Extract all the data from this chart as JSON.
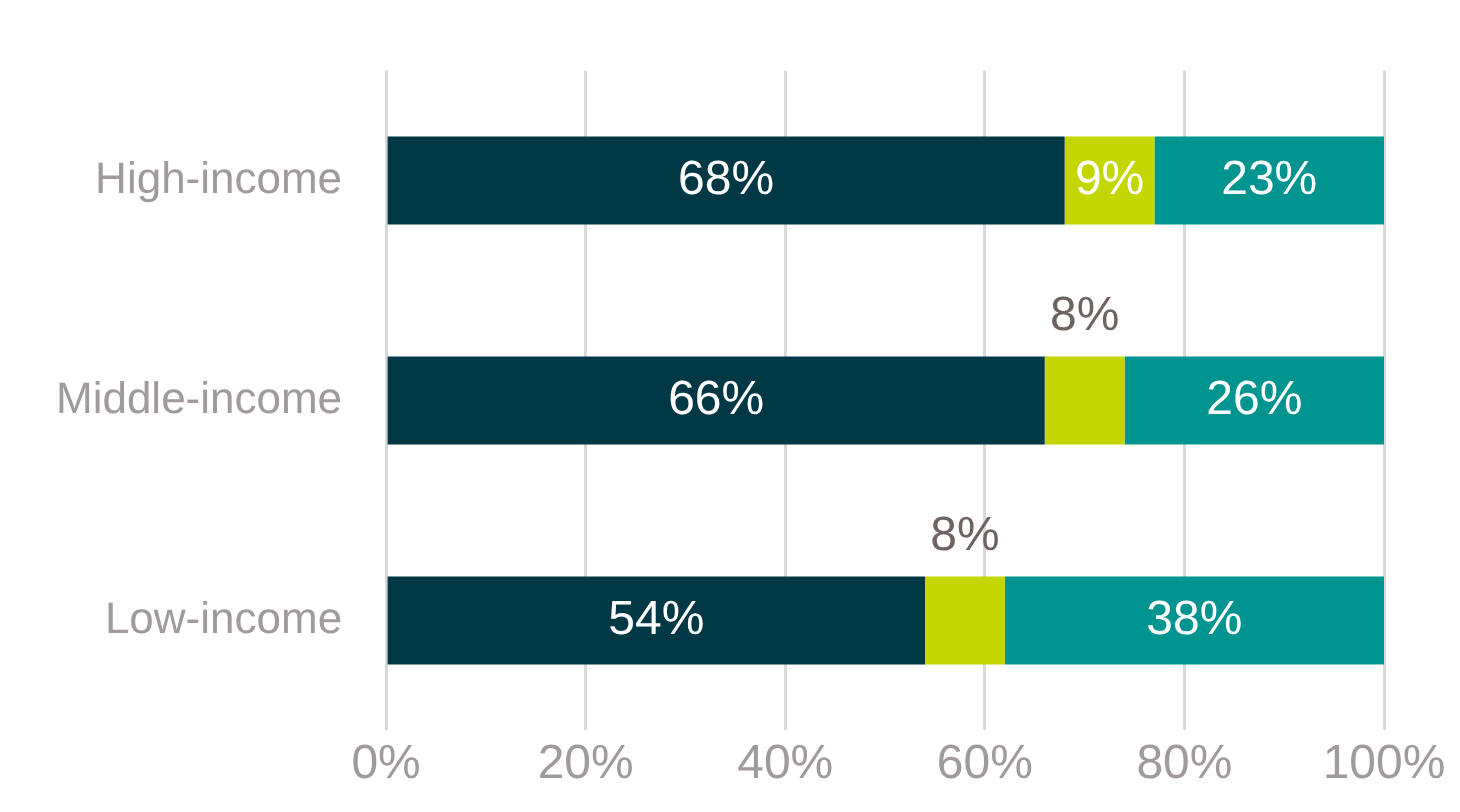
{
  "chart_data": {
    "type": "bar",
    "orientation": "horizontal",
    "stacked": true,
    "categories": [
      "High-income",
      "Middle-income",
      "Low-income"
    ],
    "series": [
      {
        "color": "#003846",
        "values": [
          68,
          66,
          54
        ],
        "value_labels": [
          "68%",
          "66%",
          "54%"
        ]
      },
      {
        "color": "#c4d600",
        "values": [
          9,
          8,
          8
        ],
        "value_labels": [
          "9%",
          "8%",
          "8%"
        ]
      },
      {
        "color": "#009490",
        "values": [
          23,
          26,
          38
        ],
        "value_labels": [
          "23%",
          "26%",
          "38%"
        ]
      }
    ],
    "xlim": [
      0,
      100
    ],
    "xticks": [
      {
        "value": 0,
        "label": "0%"
      },
      {
        "value": 20,
        "label": "20%"
      },
      {
        "value": 40,
        "label": "40%"
      },
      {
        "value": 60,
        "label": "60%"
      },
      {
        "value": 80,
        "label": "80%"
      },
      {
        "value": 100,
        "label": "100%"
      }
    ],
    "grid": "x",
    "legend": false
  }
}
